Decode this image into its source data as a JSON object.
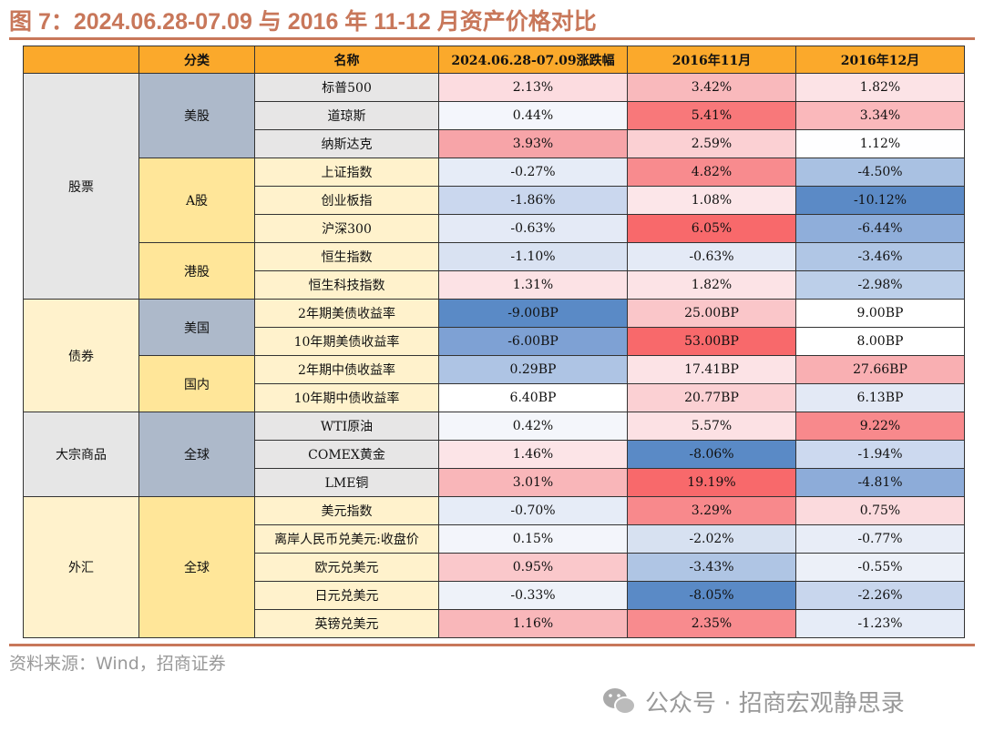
{
  "title": "图 7：2024.06.28-07.09 与 2016 年 11-12 月资产价格对比",
  "headers": [
    "",
    "分类",
    "名称",
    "2024.06.28-07.09涨跌幅",
    "2016年11月",
    "2016年12月"
  ],
  "header_color": "#FBA92B",
  "groups": [
    {
      "category": "股票",
      "cat_color": "#E6E6E6",
      "subs": [
        {
          "label": "美股",
          "sub_color": "#ADB9CA",
          "name_color": "#E7E6E6",
          "rows": [
            {
              "name": "标普500",
              "values": [
                "2.13%",
                "3.42%",
                "1.82%"
              ],
              "colors": [
                "#FCDCE0",
                "#F9B9BC",
                "#FCE3E6"
              ]
            },
            {
              "name": "道琼斯",
              "values": [
                "0.44%",
                "5.41%",
                "3.34%"
              ],
              "colors": [
                "#F4F6FC",
                "#F8787A",
                "#FAB8BB"
              ]
            },
            {
              "name": "纳斯达克",
              "values": [
                "3.93%",
                "2.59%",
                "1.12%"
              ],
              "colors": [
                "#F7A4A8",
                "#FBD0D3",
                "#FEFEFF"
              ]
            }
          ]
        },
        {
          "label": "A股",
          "sub_color": "#FFE699",
          "name_color": "#FFF2CC",
          "rows": [
            {
              "name": "上证指数",
              "values": [
                "-0.27%",
                "4.82%",
                "-4.50%"
              ],
              "colors": [
                "#E6ECF7",
                "#F88B8E",
                "#A9C1E2"
              ]
            },
            {
              "name": "创业板指",
              "values": [
                "-1.86%",
                "1.08%",
                "-10.12%"
              ],
              "colors": [
                "#CAD7EE",
                "#FCE6E9",
                "#5B8AC6"
              ]
            },
            {
              "name": "沪深300",
              "values": [
                "-0.63%",
                "6.05%",
                "-6.44%"
              ],
              "colors": [
                "#E4EAF6",
                "#F8696B",
                "#8FAEDA"
              ]
            }
          ]
        },
        {
          "label": "港股",
          "sub_color": "#FFE699",
          "name_color": "#FFF2CC",
          "rows": [
            {
              "name": "恒生指数",
              "values": [
                "-1.10%",
                "-0.63%",
                "-3.46%"
              ],
              "colors": [
                "#D9E2F2",
                "#E4EAF6",
                "#B0C6E5"
              ]
            },
            {
              "name": "恒生科技指数",
              "values": [
                "1.31%",
                "1.82%",
                "-2.98%"
              ],
              "colors": [
                "#FCE2E5",
                "#FCE3E6",
                "#BCCFE9"
              ]
            }
          ]
        }
      ]
    },
    {
      "category": "债券",
      "cat_color": "#FFF2CC",
      "subs": [
        {
          "label": "美国",
          "sub_color": "#ADB9CA",
          "name_color": "#FFF2CC",
          "rows": [
            {
              "name": "2年期美债收益率",
              "values": [
                "-9.00BP",
                "25.00BP",
                "9.00BP"
              ],
              "colors": [
                "#5A8AC6",
                "#FAC6C9",
                "#FFFFFF"
              ]
            },
            {
              "name": "10年期美债收益率",
              "values": [
                "-6.00BP",
                "53.00BP",
                "8.00BP"
              ],
              "colors": [
                "#7EA1D4",
                "#F8696B",
                "#FFFFFF"
              ]
            }
          ]
        },
        {
          "label": "国内",
          "sub_color": "#FFE699",
          "name_color": "#FFF2CC",
          "rows": [
            {
              "name": "2年期中债收益率",
              "values": [
                "0.29BP",
                "17.41BP",
                "27.66BP"
              ],
              "colors": [
                "#AEC4E4",
                "#FCE3E6",
                "#F9AFB2"
              ]
            },
            {
              "name": "10年期中债收益率",
              "values": [
                "6.40BP",
                "20.77BP",
                "6.13BP"
              ],
              "colors": [
                "#FFFFFF",
                "#FBD0D3",
                "#E3E9F5"
              ]
            }
          ]
        }
      ]
    },
    {
      "category": "大宗商品",
      "cat_color": "#E6E6E6",
      "subs": [
        {
          "label": "全球",
          "sub_color": "#ADB9CA",
          "name_color": "#E7E6E6",
          "rows": [
            {
              "name": "WTI原油",
              "values": [
                "0.42%",
                "5.57%",
                "9.22%"
              ],
              "colors": [
                "#F4F6FB",
                "#FCE1E4",
                "#F8898C"
              ]
            },
            {
              "name": "COMEX黄金",
              "values": [
                "1.46%",
                "-8.06%",
                "-1.94%"
              ],
              "colors": [
                "#FCE4E7",
                "#5A8AC6",
                "#CCD9EF"
              ]
            },
            {
              "name": "LME铜",
              "values": [
                "3.01%",
                "19.19%",
                "-4.81%"
              ],
              "colors": [
                "#F9B6B9",
                "#F8696B",
                "#8DACD9"
              ]
            }
          ]
        }
      ]
    },
    {
      "category": "外汇",
      "cat_color": "#FFF2CC",
      "subs": [
        {
          "label": "全球",
          "sub_color": "#FFE699",
          "name_color": "#FFF2CC",
          "rows": [
            {
              "name": "美元指数",
              "values": [
                "-0.70%",
                "3.29%",
                "0.75%"
              ],
              "colors": [
                "#E6ECF7",
                "#F8898C",
                "#FBDADD"
              ]
            },
            {
              "name": "离岸人民币兑美元:收盘价",
              "values": [
                "0.15%",
                "-2.02%",
                "-0.77%"
              ],
              "colors": [
                "#F3F5FB",
                "#D7E1F1",
                "#E8EDF7"
              ]
            },
            {
              "name": "欧元兑美元",
              "values": [
                "0.95%",
                "-3.43%",
                "-0.55%"
              ],
              "colors": [
                "#FAC8CB",
                "#AFC5E4",
                "#ECF0F8"
              ]
            },
            {
              "name": "日元兑美元",
              "values": [
                "-0.33%",
                "-8.05%",
                "-2.26%"
              ],
              "colors": [
                "#EEF2F9",
                "#5A8AC6",
                "#C8D6ED"
              ]
            },
            {
              "name": "英镑兑美元",
              "values": [
                "1.16%",
                "2.35%",
                "-1.23%"
              ],
              "colors": [
                "#F9B7BA",
                "#F88B8E",
                "#E6ECF7"
              ]
            }
          ]
        }
      ]
    }
  ],
  "source": "资料来源：Wind，招商证券",
  "watermark": "公众号 · 招商宏观静思录",
  "watermark_icon": "wechat-icon"
}
